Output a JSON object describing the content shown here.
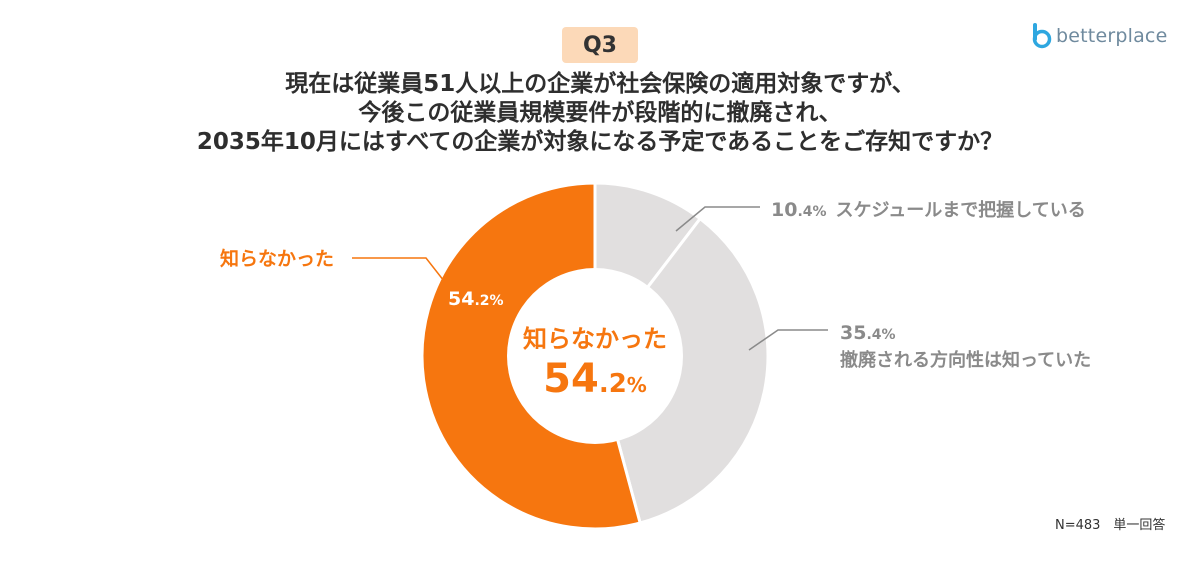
{
  "badge": "Q3",
  "title_lines": [
    "現在は従業員51人以上の企業が社会保険の適用対象ですが、",
    "今後この従業員規模要件が段階的に撤廃され、",
    "2035年10月にはすべての企業が対象になる予定であることをご存知ですか？"
  ],
  "logo": {
    "text": "betterplace",
    "icon": "betterplace-logo-icon"
  },
  "footnote": "N=483　単一回答",
  "chart_data": {
    "type": "pie",
    "variant": "donut",
    "unit": "%",
    "slices": [
      {
        "label": "スケジュールまで把握している",
        "value": 10.4,
        "value_int": "10",
        "value_dec": ".4",
        "color": "#e1dfdf"
      },
      {
        "label": "撤廃される方向性は知っていた",
        "value": 35.4,
        "value_int": "35",
        "value_dec": ".4",
        "color": "#e1dfdf"
      },
      {
        "label": "知らなかった",
        "value": 54.2,
        "value_int": "54",
        "value_dec": ".2",
        "color": "#f6760f"
      }
    ],
    "center": {
      "label": "知らなかった",
      "value_int": "54",
      "value_dec": ".2",
      "unit": "%"
    },
    "colors": {
      "accent": "#f6760f",
      "gray_slice": "#e1dfdf",
      "gray_text": "#8a8a8a",
      "line": "#8a8a8a"
    }
  }
}
